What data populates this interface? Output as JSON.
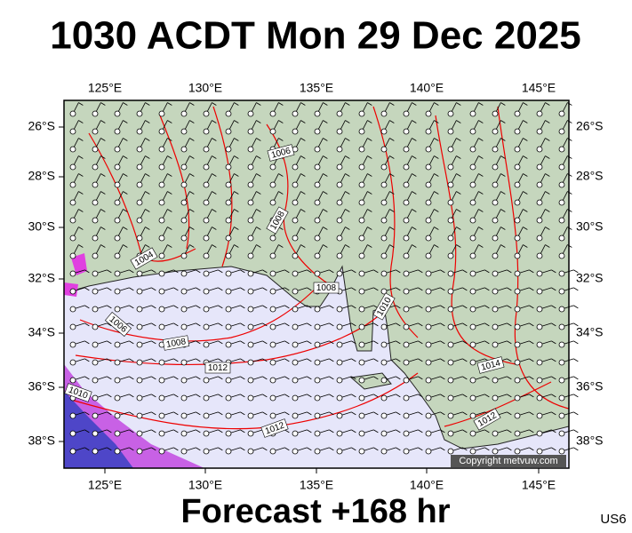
{
  "title": "1030 ACDT Mon 29 Dec 2025",
  "footer": "Forecast +168 hr",
  "corner_code": "US6",
  "copyright": "Copyright metvuw.com",
  "lon_labels": [
    "125°E",
    "130°E",
    "135°E",
    "140°E",
    "145°E"
  ],
  "lat_labels": [
    "26°S",
    "28°S",
    "30°S",
    "32°S",
    "34°S",
    "36°S",
    "38°S"
  ],
  "isobar_labels": [
    "1006",
    "1008",
    "1004",
    "1006",
    "1008",
    "1008",
    "1010",
    "1012",
    "1010",
    "1012",
    "1014",
    "1012"
  ]
}
